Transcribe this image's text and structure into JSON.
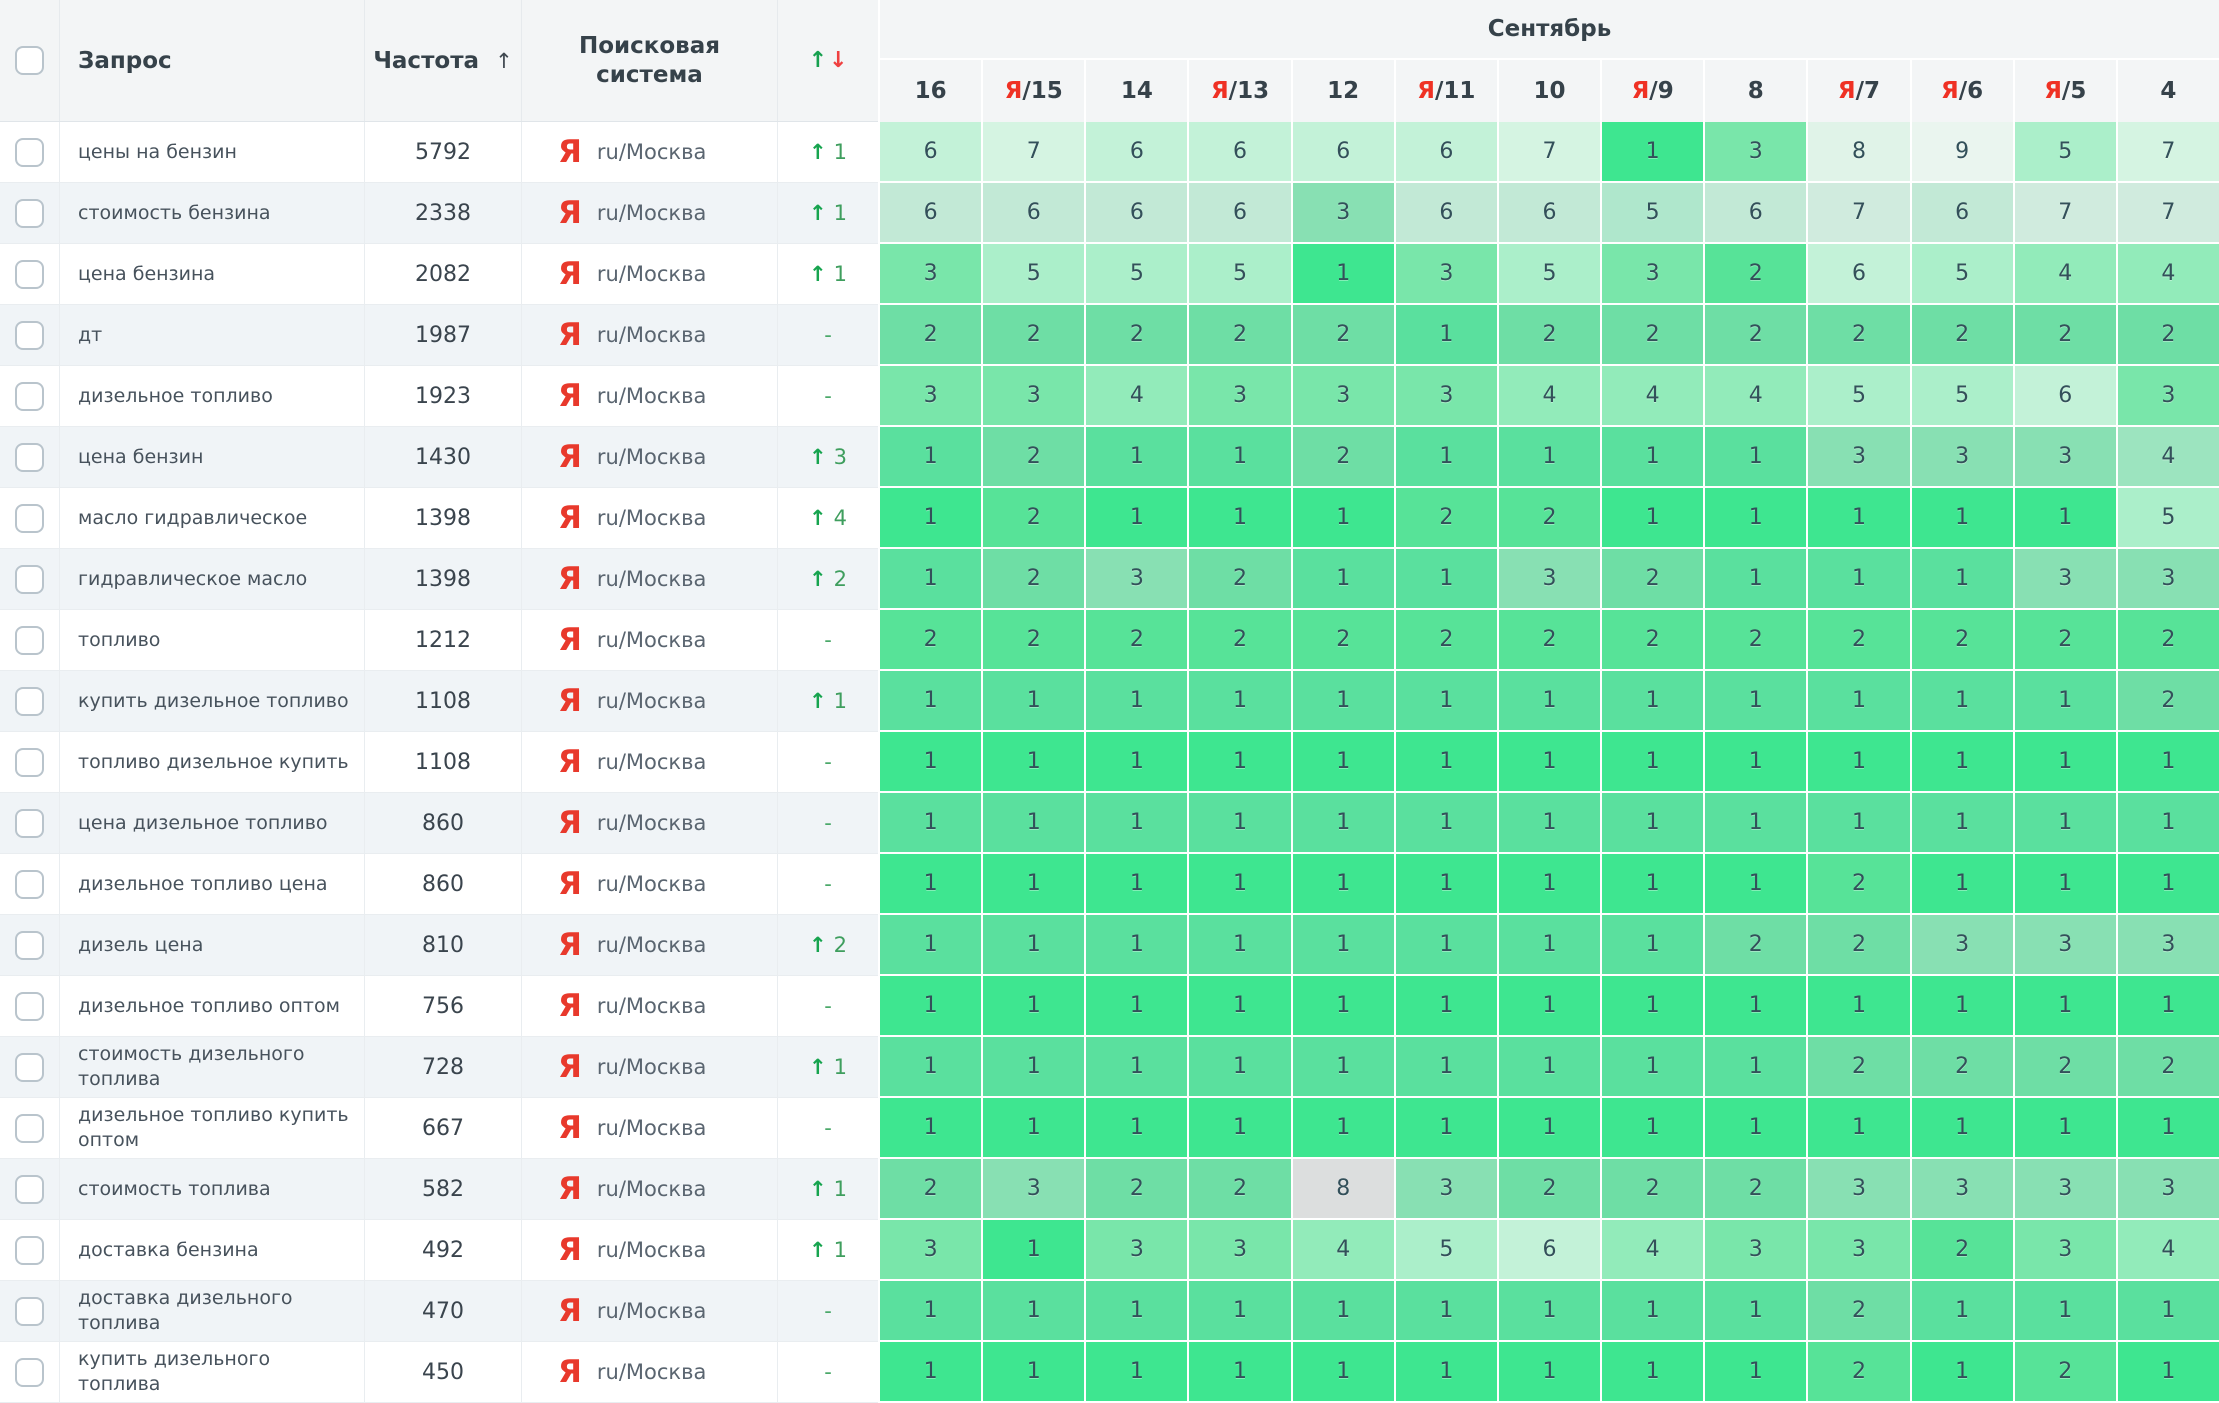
{
  "table": {
    "columns": {
      "query_label": "Запрос",
      "frequency_label": "Частота",
      "frequency_sort_icon": "↑",
      "engine_label": "Поисковая система",
      "change_up_icon": "↑",
      "change_down_icon": "↓"
    },
    "month_header": "Сентябрь",
    "date_columns": [
      {
        "day": "16",
        "yandex": false
      },
      {
        "day": "15",
        "yandex": true
      },
      {
        "day": "14",
        "yandex": false
      },
      {
        "day": "13",
        "yandex": true
      },
      {
        "day": "12",
        "yandex": false
      },
      {
        "day": "11",
        "yandex": true
      },
      {
        "day": "10",
        "yandex": false
      },
      {
        "day": "9",
        "yandex": true
      },
      {
        "day": "8",
        "yandex": false
      },
      {
        "day": "7",
        "yandex": true
      },
      {
        "day": "6",
        "yandex": true
      },
      {
        "day": "5",
        "yandex": true
      },
      {
        "day": "4",
        "yandex": false
      }
    ],
    "engine": {
      "icon": "Я",
      "label": "ru/Москва"
    },
    "change_dash": "-",
    "rows": [
      {
        "query": "цены на бензин",
        "frequency": "5792",
        "change": 1,
        "positions": [
          6,
          7,
          6,
          6,
          6,
          6,
          7,
          1,
          3,
          8,
          9,
          5,
          7
        ]
      },
      {
        "query": "стоимость бензина",
        "frequency": "2338",
        "change": 1,
        "positions": [
          6,
          6,
          6,
          6,
          3,
          6,
          6,
          5,
          6,
          7,
          6,
          7,
          7
        ]
      },
      {
        "query": "цена бензина",
        "frequency": "2082",
        "change": 1,
        "positions": [
          3,
          5,
          5,
          5,
          1,
          3,
          5,
          3,
          2,
          6,
          5,
          4,
          4
        ]
      },
      {
        "query": "дт",
        "frequency": "1987",
        "change": null,
        "positions": [
          2,
          2,
          2,
          2,
          2,
          1,
          2,
          2,
          2,
          2,
          2,
          2,
          2
        ]
      },
      {
        "query": "дизельное топливо",
        "frequency": "1923",
        "change": null,
        "positions": [
          3,
          3,
          4,
          3,
          3,
          3,
          4,
          4,
          4,
          5,
          5,
          6,
          3
        ]
      },
      {
        "query": "цена бензин",
        "frequency": "1430",
        "change": 3,
        "positions": [
          1,
          2,
          1,
          1,
          2,
          1,
          1,
          1,
          1,
          3,
          3,
          3,
          4
        ]
      },
      {
        "query": "масло гидравлическое",
        "frequency": "1398",
        "change": 4,
        "positions": [
          1,
          2,
          1,
          1,
          1,
          2,
          2,
          1,
          1,
          1,
          1,
          1,
          5
        ]
      },
      {
        "query": "гидравлическое масло",
        "frequency": "1398",
        "change": 2,
        "positions": [
          1,
          2,
          3,
          2,
          1,
          1,
          3,
          2,
          1,
          1,
          1,
          3,
          3
        ]
      },
      {
        "query": "топливо",
        "frequency": "1212",
        "change": null,
        "positions": [
          2,
          2,
          2,
          2,
          2,
          2,
          2,
          2,
          2,
          2,
          2,
          2,
          2
        ]
      },
      {
        "query": "купить дизельное топливо",
        "frequency": "1108",
        "change": 1,
        "positions": [
          1,
          1,
          1,
          1,
          1,
          1,
          1,
          1,
          1,
          1,
          1,
          1,
          2
        ]
      },
      {
        "query": "топливо дизельное купить",
        "frequency": "1108",
        "change": null,
        "positions": [
          1,
          1,
          1,
          1,
          1,
          1,
          1,
          1,
          1,
          1,
          1,
          1,
          1
        ]
      },
      {
        "query": "цена дизельное топливо",
        "frequency": "860",
        "change": null,
        "positions": [
          1,
          1,
          1,
          1,
          1,
          1,
          1,
          1,
          1,
          1,
          1,
          1,
          1
        ]
      },
      {
        "query": "дизельное топливо цена",
        "frequency": "860",
        "change": null,
        "positions": [
          1,
          1,
          1,
          1,
          1,
          1,
          1,
          1,
          1,
          2,
          1,
          1,
          1
        ]
      },
      {
        "query": "дизель цена",
        "frequency": "810",
        "change": 2,
        "positions": [
          1,
          1,
          1,
          1,
          1,
          1,
          1,
          1,
          2,
          2,
          3,
          3,
          3
        ]
      },
      {
        "query": "дизельное топливо оптом",
        "frequency": "756",
        "change": null,
        "positions": [
          1,
          1,
          1,
          1,
          1,
          1,
          1,
          1,
          1,
          1,
          1,
          1,
          1
        ]
      },
      {
        "query": "стоимость дизельного топлива",
        "frequency": "728",
        "change": 1,
        "positions": [
          1,
          1,
          1,
          1,
          1,
          1,
          1,
          1,
          1,
          2,
          2,
          2,
          2
        ]
      },
      {
        "query": "дизельное топливо купить оптом",
        "frequency": "667",
        "change": null,
        "positions": [
          1,
          1,
          1,
          1,
          1,
          1,
          1,
          1,
          1,
          1,
          1,
          1,
          1
        ]
      },
      {
        "query": "стоимость топлива",
        "frequency": "582",
        "change": 1,
        "positions": [
          2,
          3,
          2,
          2,
          8,
          3,
          2,
          2,
          2,
          3,
          3,
          3,
          3
        ],
        "grey_cells": [
          4
        ]
      },
      {
        "query": "доставка бензина",
        "frequency": "492",
        "change": 1,
        "positions": [
          3,
          1,
          3,
          3,
          4,
          5,
          6,
          4,
          3,
          3,
          2,
          3,
          4
        ]
      },
      {
        "query": "доставка дизельного топлива",
        "frequency": "470",
        "change": null,
        "positions": [
          1,
          1,
          1,
          1,
          1,
          1,
          1,
          1,
          1,
          2,
          1,
          1,
          1
        ]
      },
      {
        "query": "купить дизельного топлива",
        "frequency": "450",
        "change": null,
        "positions": [
          1,
          1,
          1,
          1,
          1,
          1,
          1,
          1,
          1,
          2,
          1,
          2,
          1
        ]
      }
    ],
    "colors": {
      "yandex_red": "#ef3124",
      "change_green": "#17a44f",
      "grey_cell": "#dcdede",
      "muted_blend": "#becad1",
      "position_palette": {
        "1": "#3ee690",
        "2": "#57e398",
        "3": "#79e6aa",
        "4": "#92ebba",
        "5": "#abefca",
        "6": "#c3f2d8",
        "7": "#d5f4e2",
        "8": "#e0f3e8",
        "9": "#eaf5ef"
      }
    }
  }
}
